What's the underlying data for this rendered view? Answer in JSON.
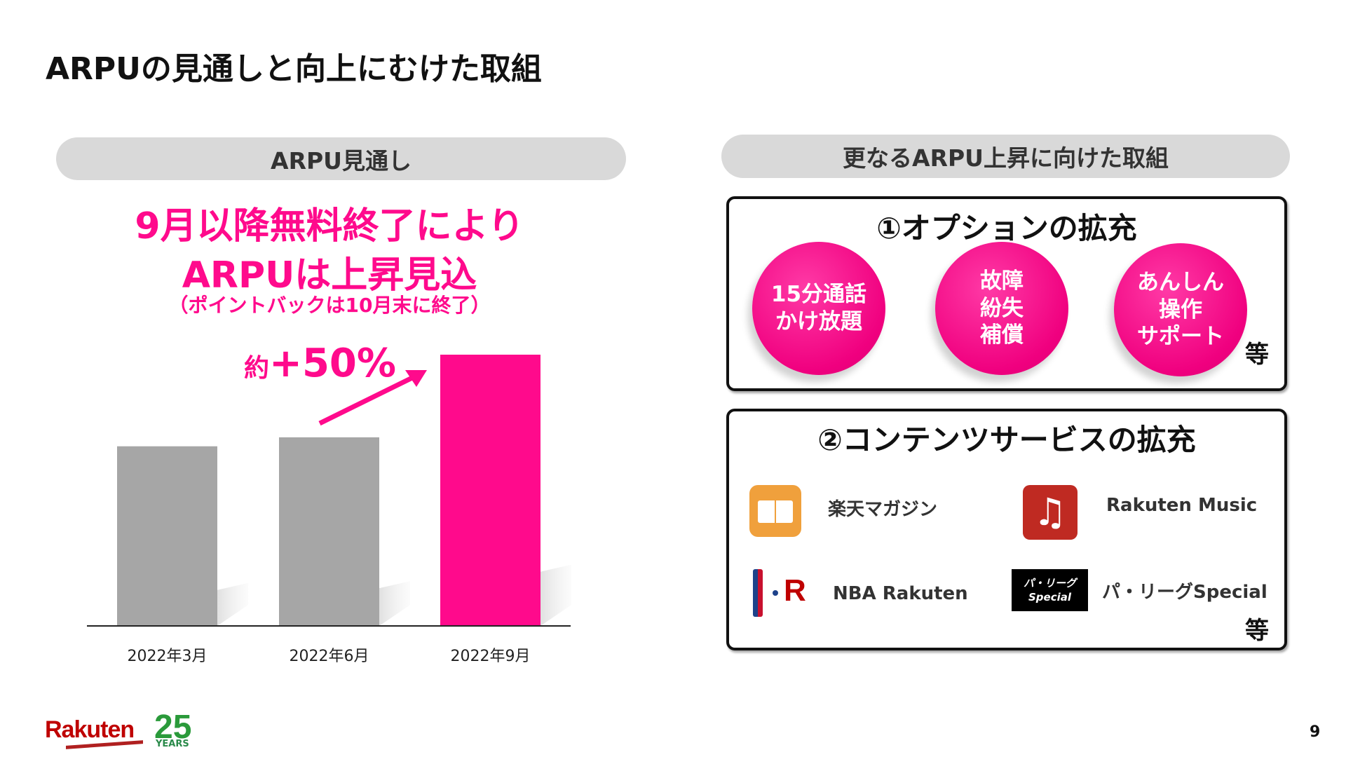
{
  "title": "ARPUの見通しと向上にむけた取組",
  "left": {
    "header": "ARPU見通し",
    "headline1": "9月以降無料終了により",
    "headline2": "ARPUは上昇見込",
    "note": "（ポイントバックは10月末に終了）",
    "growth_prefix": "約",
    "growth_value": "+50%"
  },
  "chart_data": {
    "type": "bar",
    "categories": [
      "2022年3月",
      "2022年6月",
      "2022年9月"
    ],
    "values": [
      100,
      105,
      151
    ],
    "colors": [
      "#a6a6a6",
      "#a6a6a6",
      "#ff0a8c"
    ],
    "annotation": "約+50%",
    "grid": false
  },
  "right": {
    "header": "更なるARPU上昇に向けた取組",
    "options": {
      "title": "①オプションの拡充",
      "items": [
        "15分通話\nかけ放題",
        "故障\n紛失\n補償",
        "あんしん\n操作\nサポート"
      ],
      "etc": "等"
    },
    "content": {
      "title": "②コンテンツサービスの拡充",
      "items": [
        "楽天マガジン",
        "Rakuten Music",
        "NBA Rakuten",
        "パ・リーグSpecial"
      ],
      "etc": "等",
      "pa_logo": "パ・リーグ Special"
    }
  },
  "footer": {
    "logo": "Rakuten 25 YEARS",
    "page": "9"
  }
}
